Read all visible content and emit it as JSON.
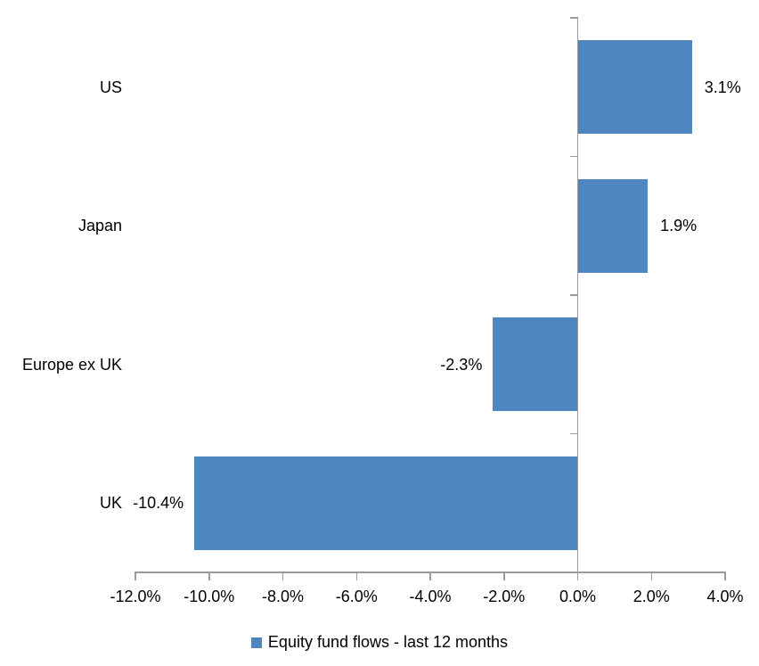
{
  "chart_data": {
    "type": "bar",
    "orientation": "horizontal",
    "title": "",
    "xlabel": "",
    "ylabel": "",
    "categories": [
      "US",
      "Japan",
      "Europe ex UK",
      "UK"
    ],
    "values": [
      3.1,
      1.9,
      -2.3,
      -10.4
    ],
    "value_labels": [
      "3.1%",
      "1.9%",
      "-2.3%",
      "-10.4%"
    ],
    "series": [
      {
        "name": "Equity fund flows - last 12 months",
        "values": [
          3.1,
          1.9,
          -2.3,
          -10.4
        ]
      }
    ],
    "xlim": [
      -12,
      4
    ],
    "x_tick_values": [
      -12,
      -10,
      -8,
      -6,
      -4,
      -2,
      0,
      2,
      4
    ],
    "x_tick_labels": [
      "-12.0%",
      "-10.0%",
      "-8.0%",
      "-6.0%",
      "-4.0%",
      "-2.0%",
      "0.0%",
      "2.0%",
      "4.0%"
    ],
    "grid": false,
    "bar_color": "#4e86bd",
    "axis_color": "#9a9a9a",
    "text_color": "#000000",
    "legend": {
      "label": "Equity fund flows - last 12 months",
      "position": "bottom-center"
    }
  }
}
